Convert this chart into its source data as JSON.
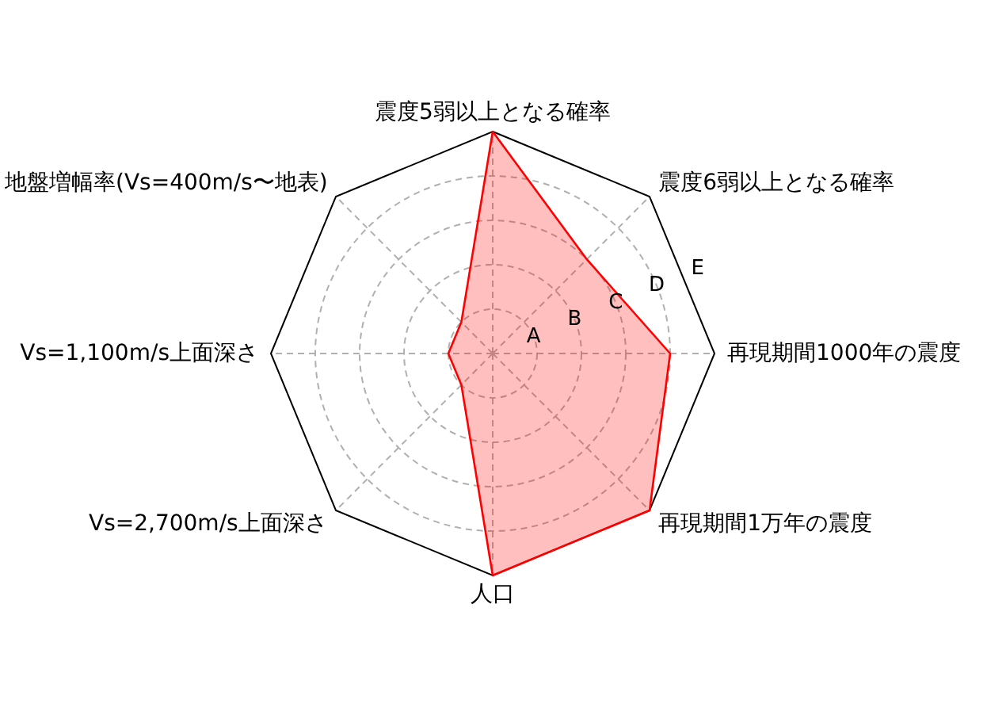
{
  "chart_data": {
    "type": "radar",
    "categories": [
      "震度5弱以上となる確率",
      "震度6弱以上となる確率",
      "再現期間1000年の震度",
      "再現期間1万年の震度",
      "人口",
      "Vs=2,700m/s上面深さ",
      "Vs=1,100m/s上面深さ",
      "地盤増幅率(Vs=400m/s〜地表)"
    ],
    "series": [
      {
        "color": "#ff0000",
        "values": [
          5,
          3,
          4,
          5,
          5,
          1,
          1,
          1
        ]
      }
    ],
    "ylim": [
      0,
      5
    ],
    "yticks": [
      {
        "value": 1,
        "label": "A"
      },
      {
        "value": 2,
        "label": "B"
      },
      {
        "value": 3,
        "label": "C"
      },
      {
        "value": 4,
        "label": "D"
      },
      {
        "value": 5,
        "label": "E"
      }
    ],
    "grid": true
  }
}
